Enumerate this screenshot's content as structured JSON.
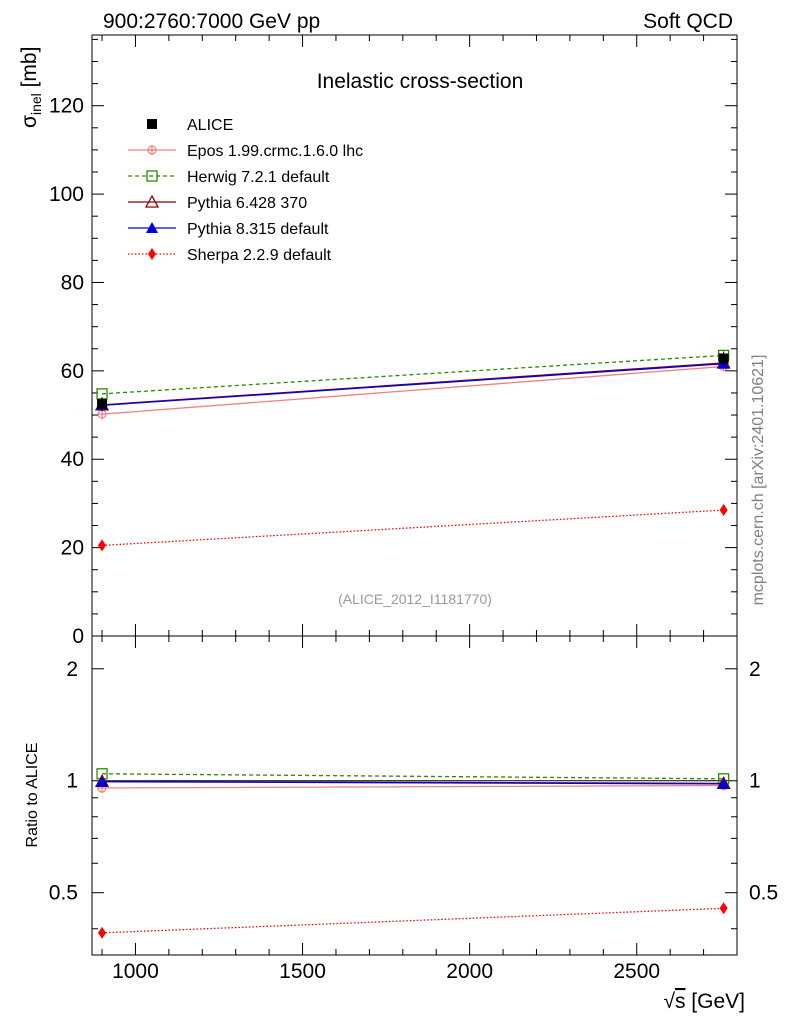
{
  "header": {
    "left": "900:2760:7000 GeV pp",
    "right": "Soft QCD"
  },
  "side_label": "mcplots.cern.ch [arXiv:2401.10621]",
  "chart_data": [
    {
      "type": "line",
      "title": "Inelastic cross-section",
      "ylabel_main": "σ",
      "ylabel_sub": "inel",
      "ylabel_unit": " [mb]",
      "xlim": [
        870,
        2800
      ],
      "ylim": [
        0,
        136
      ],
      "yticks": [
        0,
        20,
        40,
        60,
        80,
        100,
        120
      ],
      "annotation": "(ALICE_2012_I1181770)",
      "x": [
        900,
        2760
      ],
      "data": {
        "name": "ALICE",
        "values": [
          52.5,
          62.8
        ],
        "color": "#000000"
      },
      "series": [
        {
          "name": "Epos 1.99.crmc.1.6.0 lhc",
          "values": [
            50.2,
            61.0
          ],
          "color": "#f08080",
          "marker": "plus-circle",
          "dash": ""
        },
        {
          "name": "Herwig 7.2.1 default",
          "values": [
            54.8,
            63.5
          ],
          "color": "#2e8b00",
          "marker": "open-square",
          "dash": "4,3"
        },
        {
          "name": "Pythia 6.428 370",
          "values": [
            52.3,
            61.8
          ],
          "color": "#8b0000",
          "marker": "open-triangle",
          "dash": ""
        },
        {
          "name": "Pythia 8.315 default",
          "values": [
            52.2,
            61.6
          ],
          "color": "#0000dd",
          "marker": "filled-triangle",
          "dash": ""
        },
        {
          "name": "Sherpa 2.2.9 default",
          "values": [
            20.5,
            28.5
          ],
          "color": "#ff0000",
          "marker": "diamond",
          "dash": "1.5,2"
        }
      ]
    },
    {
      "type": "line",
      "title": "Ratio to ALICE",
      "ylabel": "Ratio to ALICE",
      "xlabel": "√s [GeV]",
      "xlabel_rad": "√",
      "xlabel_arg": "s",
      "xlabel_unit": " [GeV]",
      "xlim": [
        870,
        2800
      ],
      "ylim": [
        0.34,
        2.45
      ],
      "ytick_values": [
        0.5,
        1,
        2
      ],
      "ytick_labels": [
        "0.5",
        "1",
        "2"
      ],
      "xtick_values": [
        1000,
        1500,
        2000,
        2500
      ],
      "xtick_labels": [
        "1000",
        "1500",
        "2000",
        "2500"
      ],
      "x": [
        900,
        2760
      ],
      "series": [
        {
          "name": "Epos 1.99.crmc.1.6.0 lhc",
          "values": [
            0.956,
            0.971
          ]
        },
        {
          "name": "Herwig 7.2.1 default",
          "values": [
            1.044,
            1.012
          ]
        },
        {
          "name": "Pythia 6.428 370",
          "values": [
            0.996,
            0.984
          ]
        },
        {
          "name": "Pythia 8.315 default",
          "values": [
            0.994,
            0.981
          ]
        },
        {
          "name": "Sherpa 2.2.9 default",
          "values": [
            0.39,
            0.454
          ]
        }
      ]
    }
  ]
}
